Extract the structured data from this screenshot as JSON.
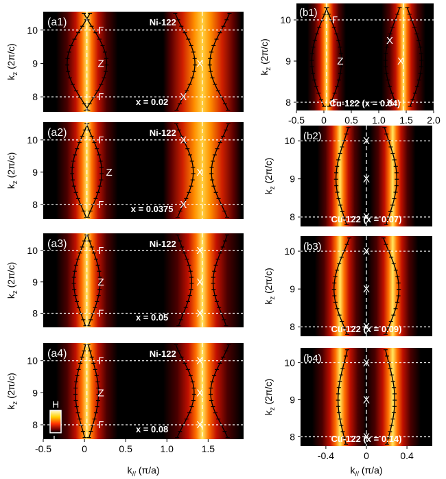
{
  "chart_data": [
    {
      "id": "a1",
      "type": "heatmap",
      "label": "(a1)",
      "compound": "Ni-122",
      "doping": "x = 0.02",
      "points": [
        {
          "t": "Γ",
          "kx": 0.2,
          "kz": 10.0
        },
        {
          "t": "Z",
          "kx": 0.2,
          "kz": 9.0
        },
        {
          "t": "Γ",
          "kx": 0.2,
          "kz": 8.0
        },
        {
          "t": "X",
          "kx": 1.4,
          "kz": 9.0
        },
        {
          "t": "X",
          "kx": 1.2,
          "kz": 8.0
        }
      ]
    },
    {
      "id": "a2",
      "type": "heatmap",
      "label": "(a2)",
      "compound": "Ni-122",
      "doping": "x = 0.0375",
      "points": [
        {
          "t": "Γ",
          "kx": 0.2,
          "kz": 10.0
        },
        {
          "t": "Z",
          "kx": 0.3,
          "kz": 9.0
        },
        {
          "t": "Γ",
          "kx": 0.2,
          "kz": 8.0
        },
        {
          "t": "X",
          "kx": 1.2,
          "kz": 10.0
        },
        {
          "t": "X",
          "kx": 1.4,
          "kz": 9.0
        },
        {
          "t": "X",
          "kx": 1.2,
          "kz": 8.0
        }
      ]
    },
    {
      "id": "a3",
      "type": "heatmap",
      "label": "(a3)",
      "compound": "Ni-122",
      "doping": "x = 0.05",
      "points": [
        {
          "t": "Γ",
          "kx": 0.2,
          "kz": 10.0
        },
        {
          "t": "Z",
          "kx": 0.2,
          "kz": 9.0
        },
        {
          "t": "Γ",
          "kx": 0.2,
          "kz": 8.0
        },
        {
          "t": "X",
          "kx": 1.4,
          "kz": 10.0
        },
        {
          "t": "X",
          "kx": 1.4,
          "kz": 9.0
        },
        {
          "t": "X",
          "kx": 1.4,
          "kz": 8.0
        }
      ]
    },
    {
      "id": "a4",
      "type": "heatmap",
      "label": "(a4)",
      "compound": "Ni-122",
      "doping": "x = 0.08",
      "points": [
        {
          "t": "Γ",
          "kx": 0.2,
          "kz": 10.0
        },
        {
          "t": "Z",
          "kx": 0.2,
          "kz": 9.0
        },
        {
          "t": "Γ",
          "kx": 0.2,
          "kz": 8.0
        },
        {
          "t": "X",
          "kx": 1.4,
          "kz": 10.0
        },
        {
          "t": "X",
          "kx": 1.4,
          "kz": 9.0
        },
        {
          "t": "X",
          "kx": 1.4,
          "kz": 8.0
        }
      ],
      "colorbar": {
        "high": "H",
        "low": "L"
      }
    },
    {
      "id": "b1",
      "type": "heatmap",
      "label": "(b1)",
      "doping": "Cu-122 (x = 0.04)",
      "points": [
        {
          "t": "Γ",
          "kx": 0.2,
          "kz": 10.0
        },
        {
          "t": "Z",
          "kx": 0.3,
          "kz": 9.0
        },
        {
          "t": "Γ",
          "kx": 0.2,
          "kz": 8.0
        },
        {
          "t": "X",
          "kx": 1.2,
          "kz": 9.5
        },
        {
          "t": "X",
          "kx": 1.4,
          "kz": 9.0
        },
        {
          "t": "X",
          "kx": 1.2,
          "kz": 8.0
        }
      ]
    },
    {
      "id": "b2",
      "type": "heatmap",
      "label": "(b2)",
      "doping": "Cu-122 (x = 0.07)",
      "points": [
        {
          "t": "X",
          "kx": 0.0,
          "kz": 10.0
        },
        {
          "t": "X",
          "kx": 0.0,
          "kz": 9.0
        },
        {
          "t": "X",
          "kx": 0.0,
          "kz": 8.0
        }
      ]
    },
    {
      "id": "b3",
      "type": "heatmap",
      "label": "(b3)",
      "doping": "Cu-122 (x = 0.09)",
      "points": [
        {
          "t": "X",
          "kx": 0.0,
          "kz": 10.0
        },
        {
          "t": "X",
          "kx": 0.0,
          "kz": 9.0
        },
        {
          "t": "X",
          "kx": 0.0,
          "kz": 8.0
        }
      ]
    },
    {
      "id": "b4",
      "type": "heatmap",
      "label": "(b4)",
      "doping": "Cu-122 (x = 0.14)",
      "points": [
        {
          "t": "X",
          "kx": 0.0,
          "kz": 10.0
        },
        {
          "t": "X",
          "kx": 0.0,
          "kz": 9.0
        },
        {
          "t": "X",
          "kx": 0.0,
          "kz": 8.0
        }
      ]
    }
  ],
  "axes": {
    "a": {
      "xlim": [
        -0.5,
        1.93
      ],
      "ylim": [
        7.55,
        10.55
      ],
      "xticks": [
        "-0.5",
        "0",
        "0.5",
        "1.0",
        "1.5"
      ],
      "yticks": [
        "8",
        "9",
        "10"
      ],
      "ylabel": "k_z (2π/c)",
      "xlabel": "k_// (π/a)"
    },
    "b1": {
      "xlim": [
        -0.5,
        2.0
      ],
      "xticks": [
        "-0.5",
        "0",
        "0.5",
        "1.0",
        "1.5",
        "2.0"
      ],
      "yticks": [
        "8",
        "9",
        "10"
      ]
    },
    "b": {
      "xlim": [
        -0.65,
        0.65
      ],
      "xticks": [
        "-0.4",
        "0",
        "0.4"
      ],
      "yticks": [
        "8",
        "9",
        "10"
      ],
      "xlabel": "k_// (π/a)"
    }
  }
}
